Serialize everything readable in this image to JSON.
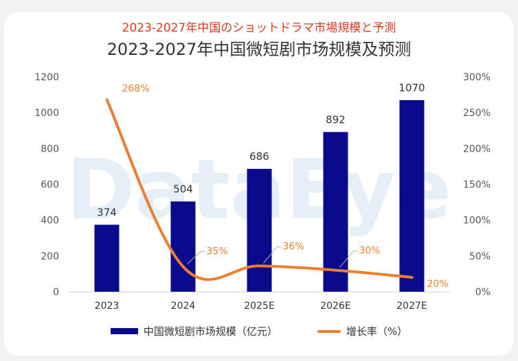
{
  "titles": {
    "jp": "2023-2027年中国のショットドラマ市場規模と予測",
    "cn": "2023-2027年中国微短剧市场规模及预测"
  },
  "watermark": "DataEye",
  "legend": {
    "bar_label": "中国微短剧市场规模（亿元）",
    "line_label": "增长率（%）"
  },
  "colors": {
    "bar": "#0a0a8c",
    "line": "#ef7d2d",
    "growth_label": "#ef7d2d"
  },
  "chart_data": {
    "type": "bar",
    "categories": [
      "2023",
      "2024",
      "2025E",
      "2026E",
      "2027E"
    ],
    "series": [
      {
        "name": "中国微短剧市场规模（亿元）",
        "type": "bar",
        "axis": "left",
        "values": [
          374,
          504,
          686,
          892,
          1070
        ]
      },
      {
        "name": "增长率（%）",
        "type": "line",
        "axis": "right",
        "values": [
          268,
          35,
          36,
          30,
          20
        ]
      }
    ],
    "bar_labels": [
      "374",
      "504",
      "686",
      "892",
      "1070"
    ],
    "line_labels": [
      "268%",
      "35%",
      "36%",
      "30%",
      "20%"
    ],
    "y_left": {
      "ticks": [
        "0",
        "200",
        "400",
        "600",
        "800",
        "1000",
        "1200"
      ],
      "range": [
        0,
        1200
      ]
    },
    "y_right": {
      "ticks": [
        "0%",
        "50%",
        "100%",
        "150%",
        "200%",
        "250%",
        "300%"
      ],
      "range": [
        0,
        300
      ]
    },
    "grid": false,
    "legend_position": "bottom"
  }
}
